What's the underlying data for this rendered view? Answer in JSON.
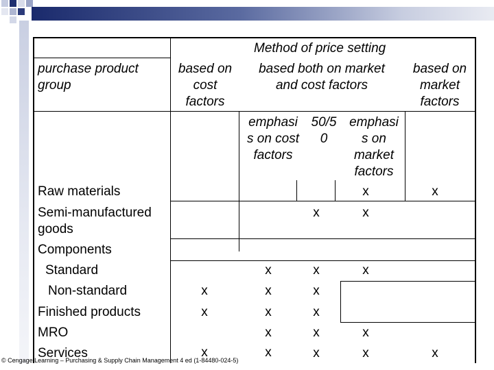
{
  "table": {
    "header": {
      "title": "Method of price setting",
      "group_label": "purchase product\ngroup",
      "col_cost": "based on\ncost\nfactors",
      "col_both": "based both on market\nand cost factors",
      "col_market": "based on\nmarket\nfactors",
      "sub_emph_cost": "emphasi\ns on cost\nfactors",
      "sub_5050": "50/5\n0",
      "sub_emph_market": "emphasi\ns on\nmarket\nfactors"
    },
    "mark": "x",
    "rows": [
      {
        "label": "Raw materials",
        "cost": "",
        "emph_cost": "",
        "fifty": "",
        "emph_market": "x",
        "market": "x"
      },
      {
        "label": "Semi-manufactured\ngoods",
        "cost": "",
        "emph_cost": "",
        "fifty": "x",
        "emph_market": "x",
        "market": ""
      },
      {
        "label": "Components",
        "cost": "",
        "emph_cost": "",
        "fifty": "",
        "emph_market": "",
        "market": ""
      },
      {
        "label": "Standard",
        "cost": "",
        "emph_cost": "x",
        "fifty": "x",
        "emph_market": "x",
        "market": ""
      },
      {
        "label": "Non-standard",
        "cost": "x",
        "emph_cost": "x",
        "fifty": "x",
        "emph_market": "",
        "market": ""
      },
      {
        "label": "Finished products",
        "cost": "x",
        "emph_cost": "x",
        "fifty": "x",
        "emph_market": "",
        "market": ""
      },
      {
        "label": "MRO",
        "cost": "",
        "emph_cost": "x",
        "fifty": "x",
        "emph_market": "x",
        "market": ""
      },
      {
        "label": "Services",
        "cost": "x",
        "emph_cost": "x",
        "fifty": "x",
        "emph_market": "x",
        "market": "x"
      }
    ]
  },
  "footer": {
    "copyright": "© Cengage Learning – Purchasing & Supply Chain Management 4 ed (1-84480-024-5)"
  }
}
